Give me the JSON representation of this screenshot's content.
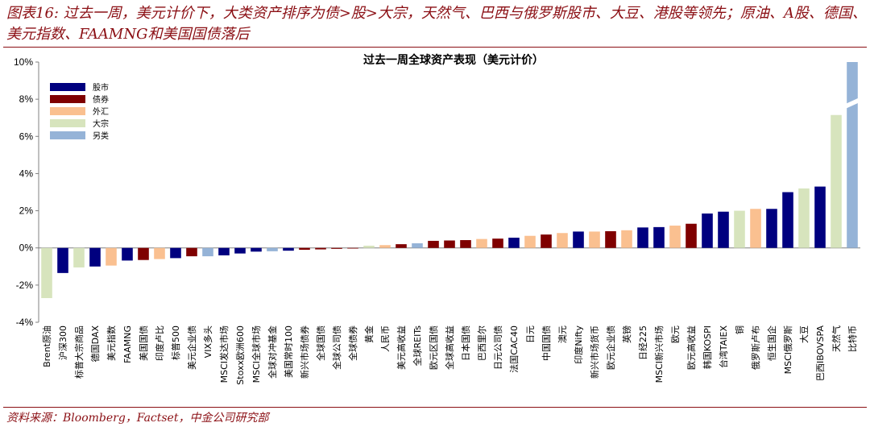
{
  "header": {
    "title": "图表16: 过去一周，美元计价下，大类资产排序为债>股>大宗，天然气、巴西与俄罗斯股市、大豆、港股等领先；原油、A股、德国、美元指数、FAAMNG和美国国债落后"
  },
  "footer": {
    "source": "资料来源：Bloomberg，Factset，中金公司研究部"
  },
  "colors": {
    "股市": "#00007f",
    "债券": "#7f0000",
    "外汇": "#fac090",
    "大宗": "#d7e4bd",
    "另类": "#95b3d7"
  },
  "chart_data": {
    "type": "bar",
    "title": "过去一周全球资产表现（美元计价）",
    "ylim": [
      -4,
      10
    ],
    "yticks": [
      "-4%",
      "-2%",
      "0%",
      "2%",
      "4%",
      "6%",
      "8%",
      "10%"
    ],
    "ytick_values": [
      -4,
      -2,
      0,
      2,
      4,
      6,
      8,
      10
    ],
    "legend": [
      "股市",
      "债券",
      "外汇",
      "大宗",
      "另类"
    ],
    "axis_break_on": "比特币",
    "categories": [
      "Brent原油",
      "沪深300",
      "标普大宗商品",
      "德国DAX",
      "美元指数",
      "FAAMNG",
      "美国国债",
      "印度卢比",
      "标普500",
      "美元企业债",
      "VIX多头",
      "MSCI发达市场",
      "Stoxx欧洲600",
      "MSCI全球市场",
      "全球对冲基金",
      "美国常时100",
      "新兴市场债券",
      "全球国债",
      "全球公司债",
      "全球债券",
      "黄金",
      "人民币",
      "美元高收益",
      "全球REITs",
      "欧元区国债",
      "全球高收益",
      "日本国债",
      "巴西里尔",
      "日元公司债",
      "法国CAC40",
      "日元",
      "中国国债",
      "澳元",
      "印度Nifty",
      "新兴市场货币",
      "欧元企业债",
      "英镑",
      "日经225",
      "MSCI新兴市场",
      "欧元",
      "欧元高收益",
      "韩国KOSPI",
      "台湾TAIEX",
      "铜",
      "俄罗斯卢布",
      "恒生国企",
      "MSCI俄罗斯",
      "大豆",
      "巴西IBOVSPA",
      "天然气",
      "比特币"
    ],
    "values": [
      -2.7,
      -1.35,
      -1.05,
      -1.0,
      -0.95,
      -0.68,
      -0.65,
      -0.6,
      -0.55,
      -0.45,
      -0.45,
      -0.4,
      -0.3,
      -0.2,
      -0.18,
      -0.15,
      -0.1,
      -0.08,
      -0.05,
      -0.03,
      0.12,
      0.15,
      0.2,
      0.25,
      0.38,
      0.4,
      0.42,
      0.48,
      0.5,
      0.55,
      0.65,
      0.72,
      0.8,
      0.88,
      0.88,
      0.9,
      0.95,
      1.1,
      1.12,
      1.2,
      1.3,
      1.85,
      1.95,
      2.0,
      2.1,
      2.1,
      3.0,
      3.2,
      3.3,
      7.15,
      10.0
    ],
    "groups": [
      "大宗",
      "股市",
      "大宗",
      "股市",
      "外汇",
      "股市",
      "债券",
      "外汇",
      "股市",
      "债券",
      "另类",
      "股市",
      "股市",
      "股市",
      "另类",
      "股市",
      "债券",
      "债券",
      "债券",
      "债券",
      "大宗",
      "外汇",
      "债券",
      "另类",
      "债券",
      "债券",
      "债券",
      "外汇",
      "债券",
      "股市",
      "外汇",
      "债券",
      "外汇",
      "股市",
      "外汇",
      "债券",
      "外汇",
      "股市",
      "股市",
      "外汇",
      "债券",
      "股市",
      "股市",
      "大宗",
      "外汇",
      "股市",
      "股市",
      "大宗",
      "股市",
      "大宗",
      "另类"
    ]
  }
}
